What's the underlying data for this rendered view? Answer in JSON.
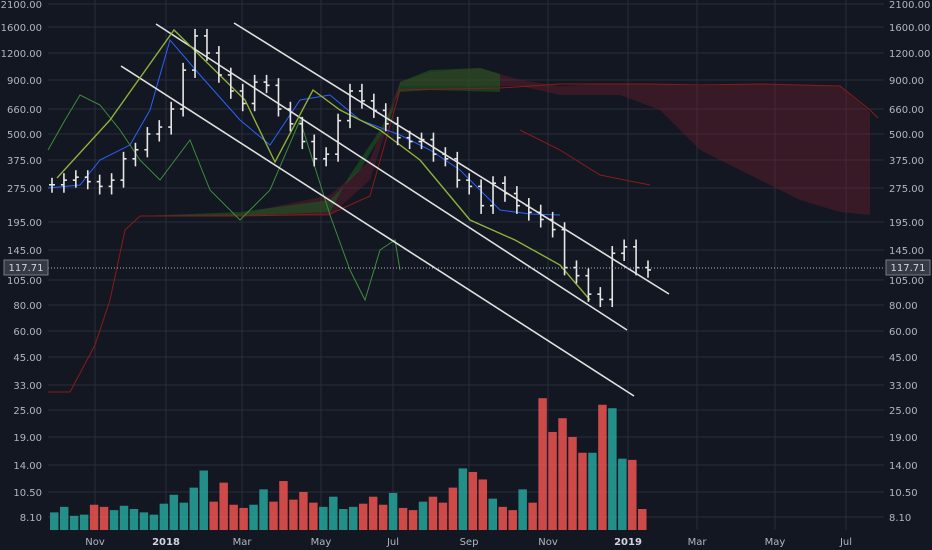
{
  "chart_data": {
    "type": "candlestick",
    "scale": "log",
    "grid": true,
    "price_axis": {
      "left_ticks": [
        "2100.00",
        "1600.00",
        "1200.00",
        "900.00",
        "660.00",
        "500.00",
        "375.00",
        "275.00",
        "195.00",
        "145.00",
        "105.00",
        "80.00",
        "60.00",
        "45.00",
        "33.00",
        "25.00",
        "19.00",
        "14.00",
        "10.50",
        "8.10"
      ],
      "right_ticks": [
        "2100.00",
        "1600.00",
        "1200.00",
        "900.00",
        "660.00",
        "500.00",
        "375.00",
        "275.00",
        "195.00",
        "145.00",
        "105.00",
        "80.00",
        "60.00",
        "45.00",
        "33.00",
        "25.00",
        "19.00",
        "14.00",
        "10.50",
        "8.10"
      ],
      "ylim": [
        5.5,
        2100
      ]
    },
    "time_axis": {
      "labels": [
        "Nov",
        "2018",
        "Mar",
        "May",
        "Jul",
        "Sep",
        "Nov",
        "2019",
        "Mar",
        "May",
        "Jul"
      ],
      "bold_labels": [
        "2018",
        "2019"
      ]
    },
    "last_price": "117.71",
    "colors": {
      "background": "#131722",
      "grid": "#2a2e39",
      "bar": "#e6e6e6",
      "channel": "#e0e0e0",
      "zigzag": "#8fb03a",
      "tenkan": "#2962ff",
      "kijun": "#8b1a1a",
      "lagging": "#3d8b3d",
      "cloud_bull": "#1b5e20",
      "cloud_bear": "#7f1d2d",
      "volume_up": "#26a69a",
      "volume_down": "#ef5350"
    },
    "series": [
      {
        "name": "price",
        "weekly_close": [
          285,
          300,
          310,
          295,
          280,
          300,
          380,
          420,
          500,
          540,
          660,
          1000,
          1450,
          1200,
          950,
          800,
          700,
          880,
          850,
          660,
          560,
          460,
          380,
          400,
          580,
          800,
          720,
          650,
          560,
          480,
          460,
          470,
          400,
          380,
          300,
          280,
          230,
          290,
          260,
          230,
          215,
          200,
          180,
          120,
          110,
          90,
          85,
          140,
          150,
          120,
          117
        ]
      },
      {
        "name": "volume",
        "values": [
          8.5,
          9.0,
          8.2,
          8.3,
          9.2,
          9.0,
          8.7,
          9.1,
          8.8,
          8.5,
          8.3,
          9.3,
          10.2,
          9.4,
          11.0,
          13.2,
          9.5,
          11.6,
          9.2,
          8.9,
          9.2,
          10.8,
          9.5,
          11.8,
          9.7,
          10.5,
          9.4,
          9.0,
          10.0,
          8.8,
          9.0,
          9.3,
          10.0,
          9.2,
          10.4,
          8.9,
          8.7,
          9.5,
          10.0,
          9.4,
          11.0,
          13.5,
          13.0,
          12.0,
          9.8,
          9.0,
          8.7,
          10.8,
          9.4,
          28.5,
          20.0,
          23.0,
          19.0,
          16.0,
          16.0,
          26.5,
          25.5,
          15.0,
          14.8,
          8.8
        ]
      }
    ],
    "channels": [
      {
        "name": "upper"
      },
      {
        "name": "middle"
      },
      {
        "name": "lower"
      }
    ]
  }
}
